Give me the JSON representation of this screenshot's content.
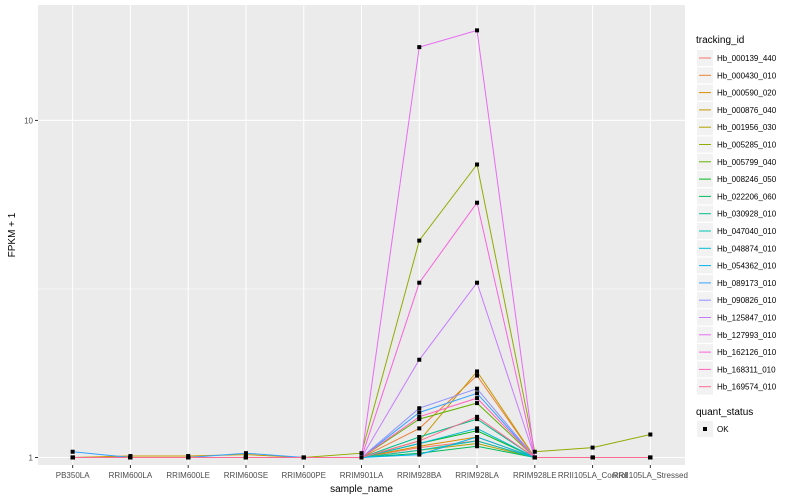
{
  "chart_data": {
    "type": "line",
    "xlabel": "sample_name",
    "ylabel": "FPKM + 1",
    "y_scale": "log10",
    "ylim": [
      0.95,
      22
    ],
    "y_ticks": [
      1,
      10
    ],
    "categories": [
      "PB350LA",
      "RRIM600LA",
      "RRIM600LE",
      "RRIM600SE",
      "RRIM600PE",
      "RRIM901LA",
      "RRIM928BA",
      "RRIM928LA",
      "RRIM928LE",
      "RRII105LA_Control",
      "RRII105LA_Stressed"
    ],
    "legend": {
      "title": "tracking_id",
      "position": "right",
      "point_legend_title": "quant_status",
      "point_legend_label": "OK"
    },
    "series": [
      {
        "name": "Hb_000139_440",
        "color": "#F8766D",
        "values": [
          1,
          1,
          1,
          1,
          1,
          1,
          1.07,
          1.12,
          1,
          1,
          1
        ]
      },
      {
        "name": "Hb_000430_010",
        "color": "#EC8239",
        "values": [
          1,
          1,
          1,
          1,
          1,
          1,
          1.22,
          1.75,
          1,
          1,
          1
        ]
      },
      {
        "name": "Hb_000590_020",
        "color": "#DB8E00",
        "values": [
          1,
          1,
          1,
          1,
          1,
          1,
          1.08,
          1.15,
          1,
          1,
          1
        ]
      },
      {
        "name": "Hb_000876_040",
        "color": "#C79800",
        "values": [
          1,
          1.01,
          1.01,
          1.02,
          1,
          1,
          1.12,
          1.8,
          1,
          1,
          1
        ]
      },
      {
        "name": "Hb_001956_030",
        "color": "#AFA100",
        "values": [
          1,
          1,
          1,
          1,
          1,
          1,
          1.05,
          1.1,
          1,
          1,
          1
        ]
      },
      {
        "name": "Hb_005285_010",
        "color": "#93AA00",
        "values": [
          1,
          1,
          1,
          1,
          1,
          1.03,
          4.4,
          7.4,
          1.04,
          1.07,
          1.17
        ]
      },
      {
        "name": "Hb_005799_040",
        "color": "#64B200",
        "values": [
          1,
          1,
          1,
          1,
          1,
          1,
          1.3,
          1.45,
          1,
          1,
          1
        ]
      },
      {
        "name": "Hb_008246_050",
        "color": "#00B81F",
        "values": [
          1,
          1,
          1,
          1,
          1,
          1,
          1.1,
          1.2,
          1,
          1,
          1
        ]
      },
      {
        "name": "Hb_022206_060",
        "color": "#00BD5C",
        "values": [
          1,
          1,
          1,
          1,
          1,
          1,
          1.03,
          1.08,
          1,
          1,
          1
        ]
      },
      {
        "name": "Hb_030928_010",
        "color": "#00C08B",
        "values": [
          1,
          1,
          1,
          1,
          1,
          1,
          1.15,
          1.3,
          1,
          1,
          1
        ]
      },
      {
        "name": "Hb_047040_010",
        "color": "#00C1B2",
        "values": [
          1,
          1,
          1,
          1,
          1,
          1,
          1.05,
          1.12,
          1,
          1,
          1
        ]
      },
      {
        "name": "Hb_048874_010",
        "color": "#00BCD6",
        "values": [
          1,
          1,
          1,
          1,
          1,
          1,
          1.1,
          1.22,
          1,
          1,
          1
        ]
      },
      {
        "name": "Hb_054362_010",
        "color": "#00B4EF",
        "values": [
          1,
          1,
          1,
          1,
          1,
          1,
          1.02,
          1.15,
          1,
          1,
          1
        ]
      },
      {
        "name": "Hb_089173_010",
        "color": "#35A2FF",
        "values": [
          1.04,
          1,
          1,
          1.03,
          1,
          1,
          1.36,
          1.55,
          1,
          1,
          1
        ]
      },
      {
        "name": "Hb_090826_010",
        "color": "#8F91FF",
        "values": [
          1,
          1,
          1,
          1,
          1,
          1,
          1.4,
          1.6,
          1,
          1,
          1
        ]
      },
      {
        "name": "Hb_125847_010",
        "color": "#C77CFF",
        "values": [
          1,
          1,
          1,
          1,
          1,
          1,
          1.95,
          3.3,
          1,
          1,
          1
        ]
      },
      {
        "name": "Hb_127993_010",
        "color": "#E76BF3",
        "values": [
          1,
          1,
          1,
          1,
          1,
          1,
          16.5,
          18.5,
          1,
          1,
          1
        ]
      },
      {
        "name": "Hb_162126_010",
        "color": "#FA62DB",
        "values": [
          1,
          1,
          1,
          1,
          1,
          1,
          3.3,
          5.7,
          1,
          1,
          1
        ]
      },
      {
        "name": "Hb_168311_010",
        "color": "#FF62BC",
        "values": [
          1,
          1,
          1,
          1,
          1,
          1,
          1.32,
          1.5,
          1,
          1,
          1
        ]
      },
      {
        "name": "Hb_169574_010",
        "color": "#FF6C91",
        "values": [
          1,
          1,
          1,
          1,
          1,
          1,
          1.12,
          1.32,
          1,
          1,
          1
        ]
      }
    ]
  }
}
